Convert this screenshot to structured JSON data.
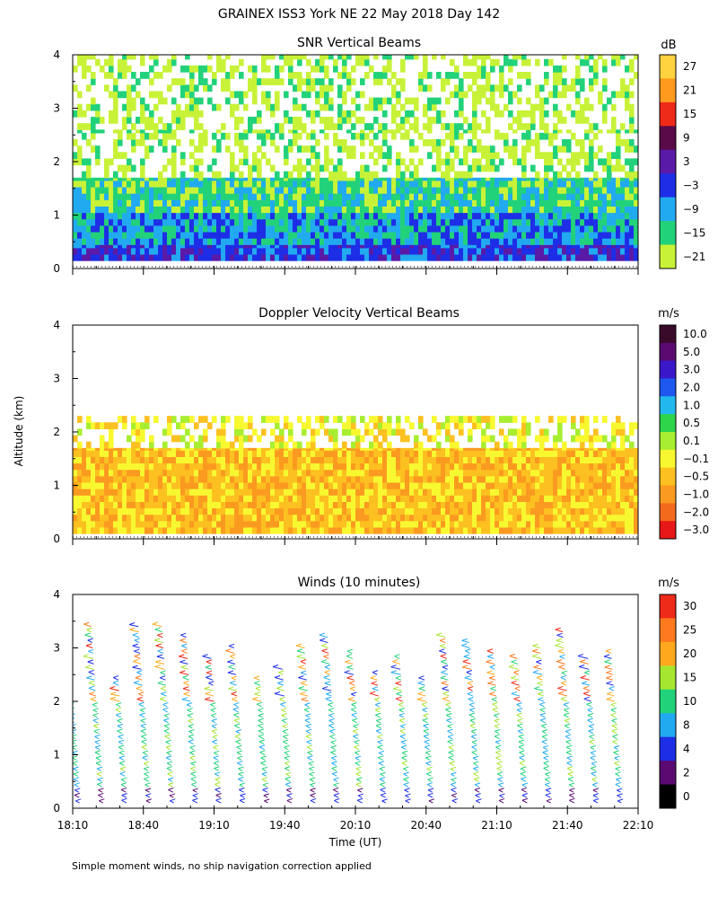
{
  "figure": {
    "title": "GRAINEX ISS3 York NE  22 May 2018 Day 142",
    "ylabel": "Altitude (km)",
    "xlabel": "Time (UT)",
    "footnote": "Simple moment winds, no ship navigation correction applied"
  },
  "chart_data": [
    {
      "type": "heatmap",
      "title": "SNR Vertical Beams",
      "unit": "dB",
      "x": {
        "range": [
          "18:10",
          "22:10"
        ],
        "ticks": [
          "18:10",
          "18:40",
          "19:10",
          "19:40",
          "20:10",
          "20:40",
          "21:10",
          "21:40",
          "22:10"
        ],
        "show_labels": false
      },
      "y": {
        "range": [
          0,
          4
        ],
        "ticks": [
          "0",
          "1",
          "2",
          "3",
          "4"
        ]
      },
      "colorbar": {
        "labels": [
          "27",
          "21",
          "15",
          "9",
          "3",
          "−3",
          "−9",
          "−15",
          "−21"
        ],
        "colors": [
          "#ffd23f",
          "#ff9a1e",
          "#ee2a18",
          "#5a0a48",
          "#5a1aa8",
          "#1e2ee6",
          "#22aaf0",
          "#22d27a",
          "#c8f238"
        ]
      },
      "layers": [
        {
          "from_km": 0.15,
          "to_km": 0.45,
          "category": "#1e2ee6"
        },
        {
          "from_km": 0.45,
          "to_km": 1.05,
          "category": "#22aaf0"
        },
        {
          "from_km": 1.05,
          "to_km": 1.7,
          "category": "#22d27a"
        },
        {
          "from_km": 1.7,
          "to_km": 2.6,
          "category": "#c8f238",
          "sparse": true
        },
        {
          "from_km": 2.6,
          "to_km": 4.0,
          "category": "#c8f238",
          "sparse": true
        }
      ]
    },
    {
      "type": "heatmap",
      "title": "Doppler Velocity Vertical Beams",
      "unit": "m/s",
      "x": {
        "range": [
          "18:10",
          "22:10"
        ],
        "ticks": [
          "18:10",
          "18:40",
          "19:10",
          "19:40",
          "20:10",
          "20:40",
          "21:10",
          "21:40",
          "22:10"
        ],
        "show_labels": false
      },
      "y": {
        "range": [
          0,
          4
        ],
        "ticks": [
          "0",
          "1",
          "2",
          "3",
          "4"
        ]
      },
      "colorbar": {
        "labels": [
          "10.0",
          "5.0",
          "3.0",
          "2.0",
          "1.0",
          "0.5",
          "0.1",
          "−0.1",
          "−0.5",
          "−1.0",
          "−2.0",
          "−3.0"
        ],
        "colors": [
          "#3a0a2a",
          "#5a0a70",
          "#3818c8",
          "#1e58f0",
          "#22b8ee",
          "#2ed44a",
          "#a8ee30",
          "#f8f830",
          "#fcc020",
          "#fb9a20",
          "#f36a1c",
          "#e81818"
        ]
      },
      "layers": [
        {
          "from_km": 0.1,
          "to_km": 1.7,
          "category": "#fcc020"
        },
        {
          "from_km": 1.7,
          "to_km": 2.3,
          "category": "#f8f830",
          "sparse": true
        }
      ]
    },
    {
      "type": "scatter",
      "title": "Winds (10 minutes)",
      "unit": "m/s",
      "x": {
        "range": [
          "18:10",
          "22:10"
        ],
        "ticks": [
          "18:10",
          "18:40",
          "19:10",
          "19:40",
          "20:10",
          "20:40",
          "21:10",
          "21:40",
          "22:10"
        ],
        "show_labels": true
      },
      "y": {
        "range": [
          0,
          4
        ],
        "ticks": [
          "0",
          "1",
          "2",
          "3",
          "4"
        ]
      },
      "colorbar": {
        "labels": [
          "30",
          "25",
          "20",
          "15",
          "10",
          "8",
          "4",
          "2",
          "0"
        ],
        "colors": [
          "#ee2a18",
          "#ff7a1e",
          "#ffa81e",
          "#a6e630",
          "#22d27a",
          "#22aaf0",
          "#1e2ee6",
          "#5a0a70",
          "#000000"
        ]
      },
      "profile_times": [
        "18:10",
        "18:20",
        "18:30",
        "18:40",
        "18:50",
        "19:00",
        "19:10",
        "19:20",
        "19:30",
        "19:40",
        "19:50",
        "20:00",
        "20:10",
        "20:20",
        "20:30",
        "20:40",
        "20:50",
        "21:00",
        "21:10",
        "21:20",
        "21:30",
        "21:40",
        "21:50",
        "22:00"
      ],
      "lowest_gate_km": 0.1
    }
  ]
}
